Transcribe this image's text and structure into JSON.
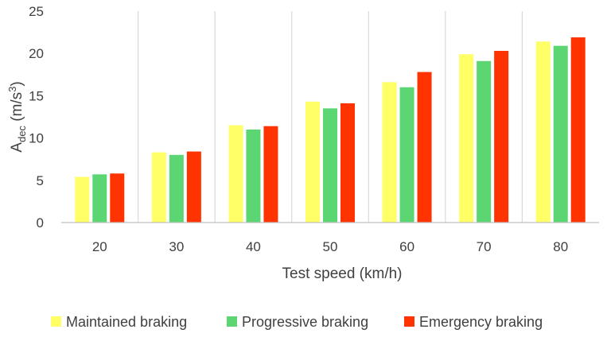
{
  "chart_data": {
    "type": "bar",
    "title": "",
    "xlabel": "Test speed (km/h)",
    "ylabel": {
      "main": "A",
      "sub": "dec",
      "unit_open": " (m/s",
      "sup": "3",
      "unit_close": ")"
    },
    "categories": [
      "20",
      "30",
      "40",
      "50",
      "60",
      "70",
      "80"
    ],
    "ylim": [
      0,
      25
    ],
    "yticks": [
      "0",
      "5",
      "10",
      "15",
      "20",
      "25"
    ],
    "grid": "vertical separators between categories",
    "legend_position": "bottom",
    "series": [
      {
        "name": "Maintained braking",
        "color": "#FFFF66",
        "values": [
          5.4,
          8.3,
          11.5,
          14.3,
          16.6,
          19.9,
          21.4
        ]
      },
      {
        "name": "Progressive braking",
        "color": "#5CD672",
        "values": [
          5.7,
          8.0,
          11.0,
          13.5,
          16.0,
          19.1,
          20.9
        ]
      },
      {
        "name": "Emergency braking",
        "color": "#FF3300",
        "values": [
          5.8,
          8.4,
          11.4,
          14.1,
          17.8,
          20.3,
          21.9
        ]
      }
    ]
  }
}
